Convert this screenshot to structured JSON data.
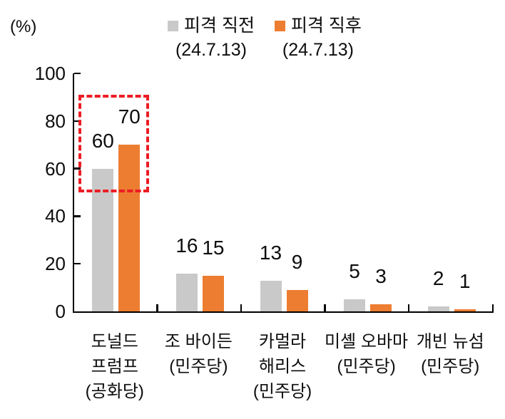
{
  "unit_label": "(%)",
  "legend": {
    "items": [
      {
        "label": "피격 직전",
        "sublabel": "(24.7.13)",
        "color": "#c9c9c9"
      },
      {
        "label": "피격 직후",
        "sublabel": "(24.7.13)",
        "color": "#ed7d31"
      }
    ]
  },
  "chart_data": {
    "type": "bar",
    "title": "",
    "ylabel": "(%)",
    "xlabel": "",
    "ylim": [
      0,
      100
    ],
    "yticks": [
      0,
      20,
      40,
      60,
      80,
      100
    ],
    "grid": false,
    "legend_position": "top",
    "categories": [
      "도널드 프럼프 (공화당)",
      "조 바이든 (민주당)",
      "카멀라 해리스 (민주당)",
      "미셸 오바마 (민주당)",
      "개빈 뉴섬 (민주당)"
    ],
    "category_lines": [
      [
        "도널드",
        "프럼프",
        "(공화당)"
      ],
      [
        "조 바이든",
        "(민주당)"
      ],
      [
        "카멀라",
        "해리스",
        "(민주당)"
      ],
      [
        "미셸 오바마",
        "(민주당)"
      ],
      [
        "개빈 뉴섬",
        "(민주당)"
      ]
    ],
    "series": [
      {
        "name": "피격 직전 (24.7.13)",
        "color": "#c9c9c9",
        "values": [
          60,
          16,
          13,
          5,
          2
        ]
      },
      {
        "name": "피격 직후 (24.7.13)",
        "color": "#ed7d31",
        "values": [
          70,
          15,
          9,
          3,
          1
        ]
      }
    ],
    "annotation": {
      "type": "dashed-box",
      "color": "#ed1c24",
      "category_index": 0,
      "value_top": 91,
      "value_bottom": 50
    },
    "axis_color": "#000000"
  }
}
